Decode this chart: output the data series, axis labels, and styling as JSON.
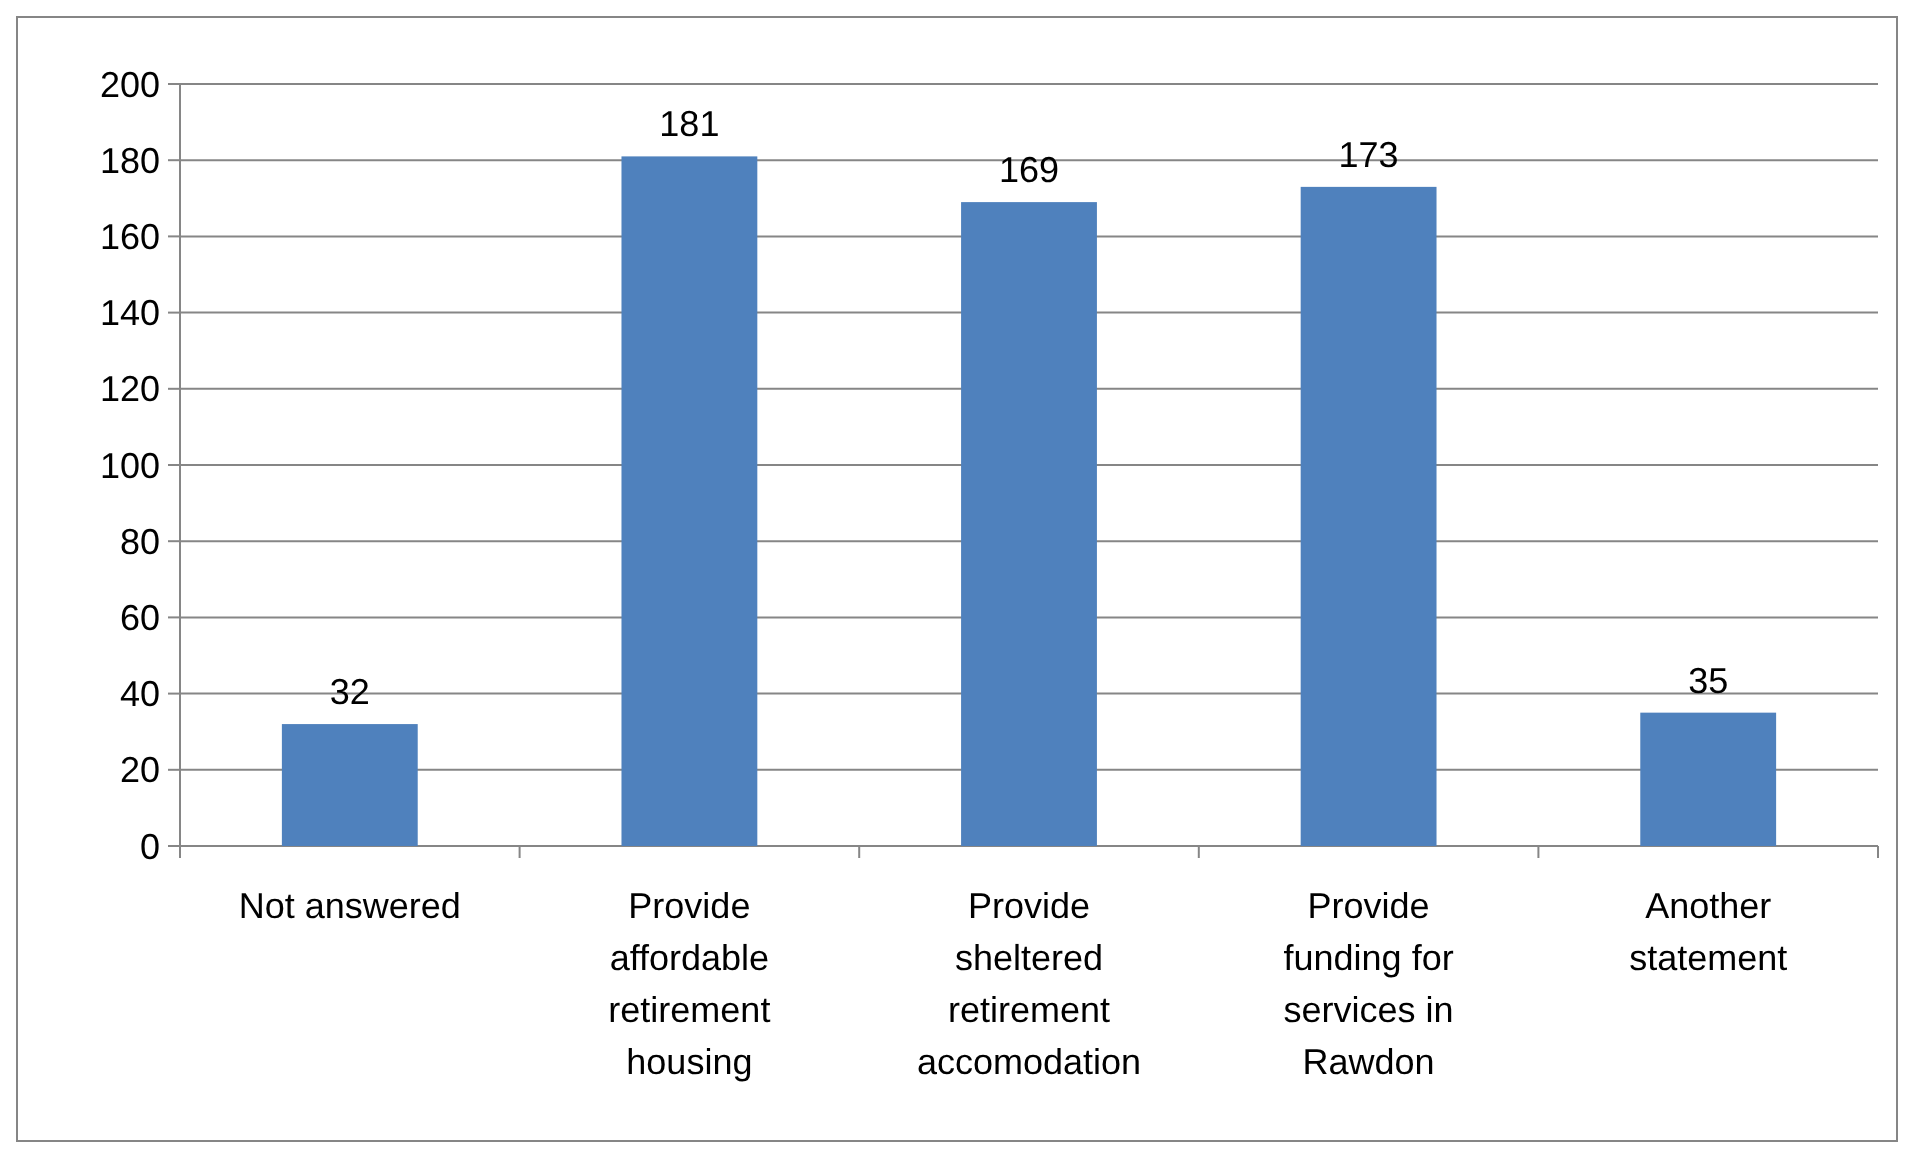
{
  "chart_data": {
    "type": "bar",
    "categories": [
      "Not answered",
      "Provide affordable retirement housing",
      "Provide sheltered retirement accomodation",
      "Provide funding for services in Rawdon",
      "Another statement"
    ],
    "values": [
      32,
      181,
      169,
      173,
      35
    ],
    "color": "#4f81bd",
    "ylim": [
      0,
      200
    ],
    "yticks": [
      0,
      20,
      40,
      60,
      80,
      100,
      120,
      140,
      160,
      180,
      200
    ],
    "grid": "y",
    "data_labels": true
  }
}
